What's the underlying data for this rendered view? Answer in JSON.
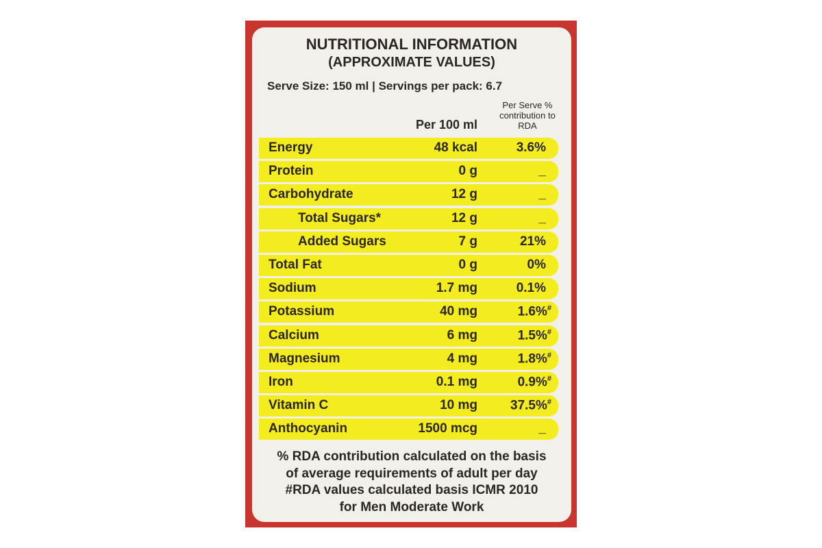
{
  "header": {
    "title": "NUTRITIONAL INFORMATION",
    "subtitle": "(APPROXIMATE VALUES)",
    "serving": "Serve Size: 150 ml | Servings per pack: 6.7"
  },
  "table": {
    "columns": [
      "Per 100 ml",
      "Per Serve % contribution to RDA"
    ],
    "rows": [
      {
        "name": "Energy",
        "amount": "48 kcal",
        "rda": "3.6%"
      },
      {
        "name": "Protein",
        "amount": "0 g",
        "rda": "_"
      },
      {
        "name": "Carbohydrate",
        "amount": "12 g",
        "rda": "_"
      },
      {
        "name": "Total Sugars*",
        "amount": "12 g",
        "rda": "_",
        "indent": true
      },
      {
        "name": "Added Sugars",
        "amount": "7 g",
        "rda": "21%",
        "indent": true
      },
      {
        "name": "Total Fat",
        "amount": "0 g",
        "rda": "0%"
      },
      {
        "name": "Sodium",
        "amount": "1.7 mg",
        "rda": "0.1%"
      },
      {
        "name": "Potassium",
        "amount": "40 mg",
        "rda": "1.6%",
        "mark": "#"
      },
      {
        "name": "Calcium",
        "amount": "6 mg",
        "rda": "1.5%",
        "mark": "#"
      },
      {
        "name": "Magnesium",
        "amount": "4 mg",
        "rda": "1.8%",
        "mark": "#"
      },
      {
        "name": "Iron",
        "amount": "0.1 mg",
        "rda": "0.9%",
        "mark": "#"
      },
      {
        "name": "Vitamin C",
        "amount": "10 mg",
        "rda": "37.5%",
        "mark": "#"
      },
      {
        "name": "Anthocyanin",
        "amount": "1500 mcg",
        "rda": "_"
      }
    ]
  },
  "notes": [
    "% RDA contribution calculated on the basis",
    "of average requirements of adult per day",
    "#RDA values calculated basis ICMR 2010",
    "for Men Moderate Work"
  ]
}
